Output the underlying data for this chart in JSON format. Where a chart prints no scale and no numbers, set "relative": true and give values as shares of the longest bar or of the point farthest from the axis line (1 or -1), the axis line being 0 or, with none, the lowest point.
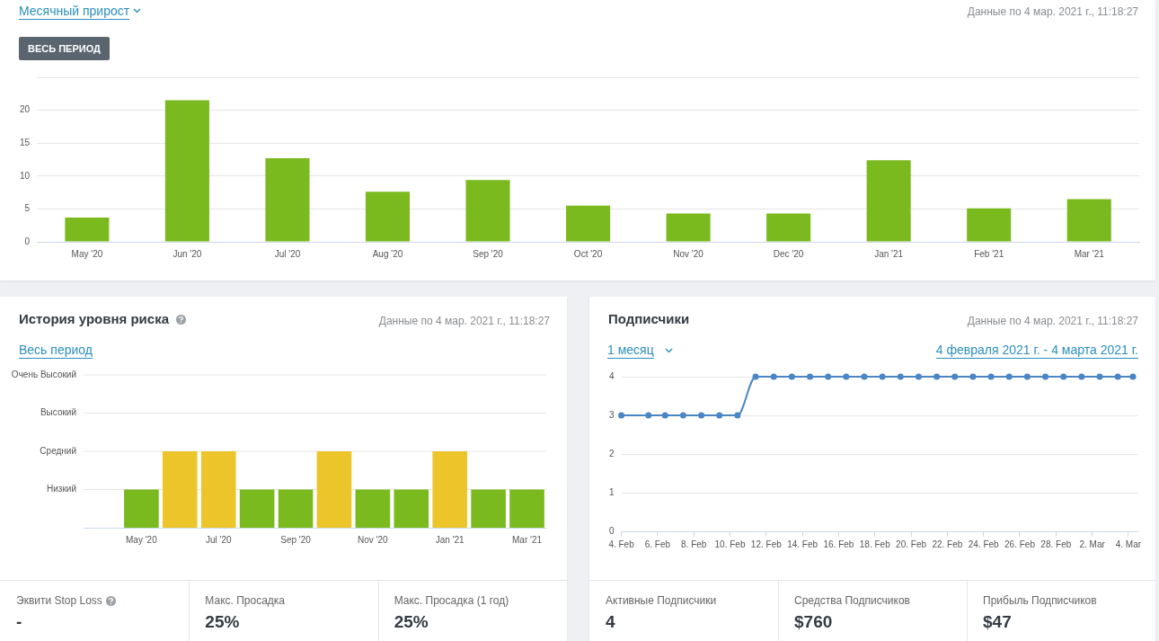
{
  "chart_data": [
    {
      "type": "bar",
      "title": "Месячный прирост",
      "subtitle": "Данные по 4 мар. 2021 г., 11:18:27",
      "annotations": [
        "ВЕСЬ ПЕРИОД"
      ],
      "categories": [
        "May '20",
        "Jun '20",
        "Jul '20",
        "Aug '20",
        "Sep '20",
        "Oct '20",
        "Nov '20",
        "Dec '20",
        "Jan '21",
        "Feb '21",
        "Mar '21"
      ],
      "values": [
        3.7,
        21.5,
        12.7,
        7.6,
        9.4,
        5.5,
        4.3,
        4.3,
        12.4,
        5.1,
        6.5
      ],
      "color": "#7aba1f",
      "ylim": [
        0,
        25
      ],
      "yticks": [
        0,
        5,
        10,
        15,
        20,
        {
          "value": 25,
          "label": null
        }
      ],
      "grid": "y"
    },
    {
      "type": "bar",
      "title": "История уровня риска",
      "subtitle": "Данные по 4 мар. 2021 г., 11:18:27",
      "annotations": [
        "Весь период"
      ],
      "categories": [
        null,
        "May '20",
        null,
        "Jul '20",
        null,
        "Sep '20",
        null,
        "Nov '20",
        null,
        "Jan '21",
        null,
        "Mar '21"
      ],
      "values": [
        null,
        0.5,
        1,
        1,
        0.5,
        0.5,
        1,
        0.5,
        0.5,
        1,
        0.5,
        0.5
      ],
      "relative": true,
      "colors": [
        null,
        "#7aba1f",
        "#ecc52a",
        "#ecc52a",
        "#7aba1f",
        "#7aba1f",
        "#ecc52a",
        "#7aba1f",
        "#7aba1f",
        "#ecc52a",
        "#7aba1f",
        "#7aba1f"
      ],
      "ref_lines": [
        {
          "axis": "y",
          "value": 0.5,
          "label": "Низкий",
          "color": "#e6e6e6"
        },
        {
          "axis": "y",
          "value": 1,
          "label": "Средний",
          "color": "#e6e6e6"
        },
        {
          "axis": "y",
          "value": 1.5,
          "label": "Высокий",
          "color": "#e6e6e6"
        },
        {
          "axis": "y",
          "value": 2,
          "label": "Очень Высокий",
          "color": "#e6e6e6"
        }
      ]
    },
    {
      "type": "line",
      "title": "Подписчики",
      "subtitle": "Данные по 4 мар. 2021 г., 11:18:27",
      "annotations": [
        "1 месяц",
        "4 февраля 2021 г. - 4 марта 2021 г."
      ],
      "x": [
        "2021-02-04T00:00",
        "2021-02-05T12:00",
        "2021-02-06T10:00",
        "2021-02-07T10:00",
        "2021-02-08T10:00",
        "2021-02-09T10:00",
        "2021-02-10T10:00",
        "2021-02-11T10:00",
        "2021-02-12T10:00",
        "2021-02-13T10:00",
        "2021-02-14T10:00",
        "2021-02-15T10:00",
        "2021-02-16T10:00",
        "2021-02-17T10:00",
        "2021-02-18T10:00",
        "2021-02-19T10:00",
        "2021-02-20T10:00",
        "2021-02-21T10:00",
        "2021-02-22T10:00",
        "2021-02-23T10:00",
        "2021-02-24T10:00",
        "2021-02-25T10:00",
        "2021-02-26T10:00",
        "2021-02-27T10:00",
        "2021-02-28T10:00",
        "2021-03-01T10:00",
        "2021-03-02T10:00",
        "2021-03-03T10:00",
        "2021-03-04T06:00"
      ],
      "values": [
        3,
        3,
        3,
        3,
        3,
        3,
        3,
        4,
        4,
        4,
        4,
        4,
        4,
        4,
        4,
        4,
        4,
        4,
        4,
        4,
        4,
        4,
        4,
        4,
        4,
        4,
        4,
        4,
        4
      ],
      "color": "#4a86c5",
      "marker": "circle",
      "xlim": [
        "2021-02-04T00:00",
        "2021-03-04T12:00"
      ],
      "xticks": [
        {
          "value": "2021-02-04",
          "label": "4. Feb"
        },
        {
          "value": "2021-02-06",
          "label": "6. Feb"
        },
        {
          "value": "2021-02-08",
          "label": "8. Feb"
        },
        {
          "value": "2021-02-10",
          "label": "10. Feb"
        },
        {
          "value": "2021-02-12",
          "label": "12. Feb"
        },
        {
          "value": "2021-02-14",
          "label": "14. Feb"
        },
        {
          "value": "2021-02-16",
          "label": "16. Feb"
        },
        {
          "value": "2021-02-18",
          "label": "18. Feb"
        },
        {
          "value": "2021-02-20",
          "label": "20. Feb"
        },
        {
          "value": "2021-02-22",
          "label": "22. Feb"
        },
        {
          "value": "2021-02-24",
          "label": "24. Feb"
        },
        {
          "value": "2021-02-26",
          "label": "26. Feb"
        },
        {
          "value": "2021-02-28",
          "label": "28. Feb"
        },
        {
          "value": "2021-03-02",
          "label": "2. Mar"
        },
        {
          "value": "2021-03-04",
          "label": "4. Mar"
        }
      ],
      "ylim": [
        0,
        4
      ],
      "yticks": [
        0,
        1,
        2,
        3,
        4
      ],
      "grid": "y"
    },
    {
      "type": "other",
      "annotations": [
        "Эквити Stop Loss",
        "-",
        "Макс. Просадка",
        "25%",
        "Макс. Просадка (1 год)",
        "25%"
      ]
    },
    {
      "type": "other",
      "annotations": [
        "Активные Подписчики",
        "4",
        "Средства Подписчиков",
        "$760",
        "Прибыль Подписчиков",
        "$47"
      ]
    }
  ]
}
